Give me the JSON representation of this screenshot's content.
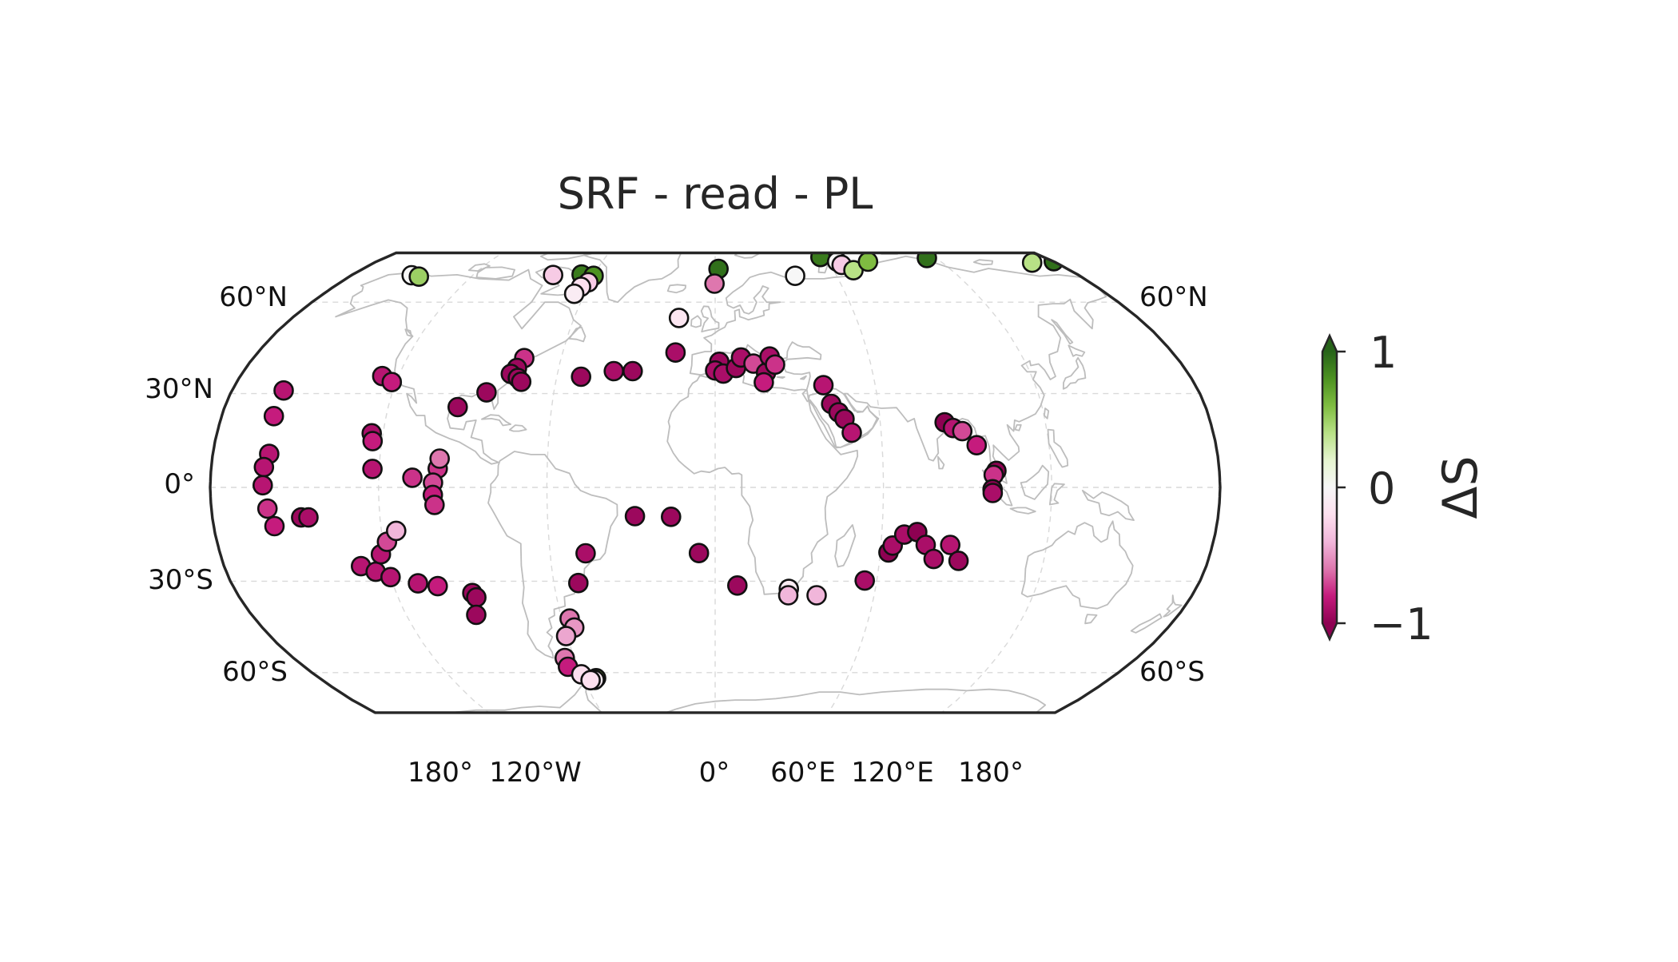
{
  "title": "SRF - read - PL",
  "map": {
    "projection": "Robinson",
    "central_longitude": 0,
    "lat_labels_left": [
      "60°N",
      "30°N",
      "0°",
      "30°S",
      "60°S"
    ],
    "lat_labels_right": [
      "60°N",
      "60°S"
    ],
    "lon_labels": [
      "180°",
      "120°W",
      "0°",
      "60°E",
      "120°E",
      "180°"
    ],
    "land_color": "#bdbdbd",
    "gridline_color": "#d9d9d9"
  },
  "colorbar": {
    "label": "ΔS",
    "ticks": [
      "1",
      "0",
      "−1"
    ],
    "range": [
      -1,
      1
    ],
    "colormap": "PiYG",
    "extend": "both"
  },
  "chart_data": {
    "type": "scatter",
    "title": "SRF - read - PL",
    "xlabel": "",
    "ylabel": "",
    "value_label": "ΔS",
    "value_range": [
      -1,
      1
    ],
    "points": [
      {
        "lon": -150.2,
        "lat": 69.8,
        "v": 0.0
      },
      {
        "lon": -145.8,
        "lat": 69.3,
        "v": 0.5
      },
      {
        "lon": -80.3,
        "lat": 69.9,
        "v": -0.3
      },
      {
        "lon": -66.3,
        "lat": 70.1,
        "v": 0.9
      },
      {
        "lon": -60.0,
        "lat": 69.6,
        "v": 0.8
      },
      {
        "lon": -61.0,
        "lat": 67.2,
        "v": -0.3
      },
      {
        "lon": -63.3,
        "lat": 65.5,
        "v": -0.2
      },
      {
        "lon": -64.8,
        "lat": 63.0,
        "v": -0.1
      },
      {
        "lon": 1.7,
        "lat": 72.3,
        "v": 0.95
      },
      {
        "lon": -0.3,
        "lat": 66.7,
        "v": -0.6
      },
      {
        "lon": 39.5,
        "lat": 69.6,
        "v": 0.0
      },
      {
        "lon": 57.7,
        "lat": 77.2,
        "v": 0.9
      },
      {
        "lon": 64.8,
        "lat": 75.2,
        "v": 0.0
      },
      {
        "lon": 66.0,
        "lat": 73.9,
        "v": -0.3
      },
      {
        "lon": 70.2,
        "lat": 71.8,
        "v": 0.4
      },
      {
        "lon": 81.2,
        "lat": 75.2,
        "v": 0.6
      },
      {
        "lon": 115.3,
        "lat": 76.8,
        "v": 0.95
      },
      {
        "lon": 167.4,
        "lat": 74.8,
        "v": 0.4
      },
      {
        "lon": 180.4,
        "lat": 75.4,
        "v": 0.95
      },
      {
        "lon": -15.4,
        "lat": 54.6,
        "v": -0.15
      },
      {
        "lon": -15.6,
        "lat": 43.2,
        "v": -0.9
      },
      {
        "lon": 1.6,
        "lat": 40.2,
        "v": -0.95
      },
      {
        "lon": 0.0,
        "lat": 37.4,
        "v": -0.9
      },
      {
        "lon": 3.1,
        "lat": 36.4,
        "v": -0.9
      },
      {
        "lon": 8.0,
        "lat": 38.2,
        "v": -0.95
      },
      {
        "lon": 10.1,
        "lat": 41.6,
        "v": -0.9
      },
      {
        "lon": 14.8,
        "lat": 39.6,
        "v": -0.7
      },
      {
        "lon": 19.4,
        "lat": 36.7,
        "v": -0.95
      },
      {
        "lon": 21.3,
        "lat": 41.9,
        "v": -0.9
      },
      {
        "lon": 23.1,
        "lat": 39.3,
        "v": -0.75
      },
      {
        "lon": 18.3,
        "lat": 33.6,
        "v": -0.8
      },
      {
        "lon": 40.6,
        "lat": 32.7,
        "v": -0.85
      },
      {
        "lon": 42.7,
        "lat": 26.7,
        "v": -0.95
      },
      {
        "lon": 45.1,
        "lat": 24.0,
        "v": -0.95
      },
      {
        "lon": 47.1,
        "lat": 21.9,
        "v": -0.95
      },
      {
        "lon": 49.4,
        "lat": 17.5,
        "v": -0.85
      },
      {
        "lon": 83.4,
        "lat": 20.8,
        "v": -1.0
      },
      {
        "lon": 86.2,
        "lat": 19.0,
        "v": -0.85
      },
      {
        "lon": 89.4,
        "lat": 18.0,
        "v": -0.7
      },
      {
        "lon": 94.0,
        "lat": 13.5,
        "v": -0.8
      },
      {
        "lon": 100.4,
        "lat": 5.3,
        "v": -1.0
      },
      {
        "lon": 99.4,
        "lat": 4.0,
        "v": -0.75
      },
      {
        "lon": 98.9,
        "lat": -0.6,
        "v": -1.0
      },
      {
        "lon": 99.0,
        "lat": -1.8,
        "v": -0.9
      },
      {
        "lon": -74.4,
        "lat": 41.4,
        "v": -0.75
      },
      {
        "lon": -76.0,
        "lat": 38.2,
        "v": -0.95
      },
      {
        "lon": -77.7,
        "lat": 36.3,
        "v": -0.95
      },
      {
        "lon": -74.6,
        "lat": 35.0,
        "v": -0.95
      },
      {
        "lon": -73.0,
        "lat": 33.8,
        "v": -0.95
      },
      {
        "lon": -50.8,
        "lat": 35.4,
        "v": -0.95
      },
      {
        "lon": -38.7,
        "lat": 37.2,
        "v": -0.9
      },
      {
        "lon": -31.5,
        "lat": 37.2,
        "v": -0.95
      },
      {
        "lon": -85.0,
        "lat": 30.4,
        "v": -0.95
      },
      {
        "lon": -94.5,
        "lat": 25.7,
        "v": -0.95
      },
      {
        "lon": -126.2,
        "lat": 35.6,
        "v": -0.85
      },
      {
        "lon": -121.7,
        "lat": 33.7,
        "v": -0.8
      },
      {
        "lon": -124.1,
        "lat": 17.3,
        "v": -0.9
      },
      {
        "lon": -123.3,
        "lat": 14.8,
        "v": -0.8
      },
      {
        "lon": -99.1,
        "lat": 6.0,
        "v": -0.75
      },
      {
        "lon": -98.6,
        "lat": 9.2,
        "v": -0.6
      },
      {
        "lon": -108.0,
        "lat": 3.1,
        "v": -0.75
      },
      {
        "lon": -100.6,
        "lat": 1.5,
        "v": -0.7
      },
      {
        "lon": -100.7,
        "lat": -2.4,
        "v": -0.8
      },
      {
        "lon": -100.2,
        "lat": -5.6,
        "v": -0.75
      },
      {
        "lon": -160.8,
        "lat": 31.0,
        "v": -0.85
      },
      {
        "lon": -161.0,
        "lat": 22.8,
        "v": -0.8
      },
      {
        "lon": -159.8,
        "lat": 10.7,
        "v": -0.85
      },
      {
        "lon": -161.2,
        "lat": 6.5,
        "v": -0.85
      },
      {
        "lon": -161.3,
        "lat": 0.7,
        "v": -0.85
      },
      {
        "lon": -160.0,
        "lat": -6.8,
        "v": -0.75
      },
      {
        "lon": -158.2,
        "lat": -12.4,
        "v": -0.8
      },
      {
        "lon": -148.2,
        "lat": -9.6,
        "v": -0.95
      },
      {
        "lon": -145.6,
        "lat": -9.6,
        "v": -0.9
      },
      {
        "lon": -122.4,
        "lat": 5.9,
        "v": -0.85
      },
      {
        "lon": -129.8,
        "lat": -25.2,
        "v": -0.85
      },
      {
        "lon": -125.0,
        "lat": -27.0,
        "v": -0.85
      },
      {
        "lon": -121.6,
        "lat": -21.4,
        "v": -0.85
      },
      {
        "lon": -118.6,
        "lat": -17.4,
        "v": -0.7
      },
      {
        "lon": -114.7,
        "lat": -13.9,
        "v": -0.4
      },
      {
        "lon": -120.1,
        "lat": -28.7,
        "v": -0.85
      },
      {
        "lon": -110.6,
        "lat": -30.7,
        "v": -0.85
      },
      {
        "lon": -103.6,
        "lat": -31.6,
        "v": -0.8
      },
      {
        "lon": -91.4,
        "lat": -33.8,
        "v": -0.95
      },
      {
        "lon": -90.4,
        "lat": -35.2,
        "v": -0.95
      },
      {
        "lon": -92.8,
        "lat": -40.8,
        "v": -0.95
      },
      {
        "lon": -50.9,
        "lat": -30.6,
        "v": -0.95
      },
      {
        "lon": -47.1,
        "lat": -21.1,
        "v": -0.9
      },
      {
        "lon": -56.9,
        "lat": -42.0,
        "v": -0.6
      },
      {
        "lon": -56.0,
        "lat": -44.9,
        "v": -0.5
      },
      {
        "lon": -60.3,
        "lat": -47.7,
        "v": -0.45
      },
      {
        "lon": -64.2,
        "lat": -55.0,
        "v": -0.6
      },
      {
        "lon": -64.5,
        "lat": -58.0,
        "v": -0.8
      },
      {
        "lon": -60.1,
        "lat": -60.6,
        "v": -0.2
      },
      {
        "lon": -54.2,
        "lat": -62.0,
        "v": 0.6
      },
      {
        "lon": -55.2,
        "lat": -62.6,
        "v": -0.1
      },
      {
        "lon": -57.1,
        "lat": -62.7,
        "v": -0.2
      },
      {
        "lon": -28.7,
        "lat": -9.2,
        "v": -0.95
      },
      {
        "lon": -15.8,
        "lat": -9.4,
        "v": -0.95
      },
      {
        "lon": -5.9,
        "lat": -21.0,
        "v": -0.95
      },
      {
        "lon": 8.3,
        "lat": -31.4,
        "v": -0.95
      },
      {
        "lon": 27.6,
        "lat": -32.5,
        "v": -0.1
      },
      {
        "lon": 27.6,
        "lat": -34.5,
        "v": -0.4
      },
      {
        "lon": 38.3,
        "lat": -34.5,
        "v": -0.4
      },
      {
        "lon": 55.5,
        "lat": -29.8,
        "v": -0.9
      },
      {
        "lon": 63.0,
        "lat": -20.8,
        "v": -1.0
      },
      {
        "lon": 64.3,
        "lat": -18.6,
        "v": -0.9
      },
      {
        "lon": 68.1,
        "lat": -15.1,
        "v": -0.9
      },
      {
        "lon": 72.7,
        "lat": -14.3,
        "v": -1.0
      },
      {
        "lon": 76.2,
        "lat": -18.4,
        "v": -0.9
      },
      {
        "lon": 85.1,
        "lat": -18.4,
        "v": -0.85
      },
      {
        "lon": 79.7,
        "lat": -22.9,
        "v": -0.9
      },
      {
        "lon": 88.9,
        "lat": -23.5,
        "v": -0.95
      }
    ]
  }
}
